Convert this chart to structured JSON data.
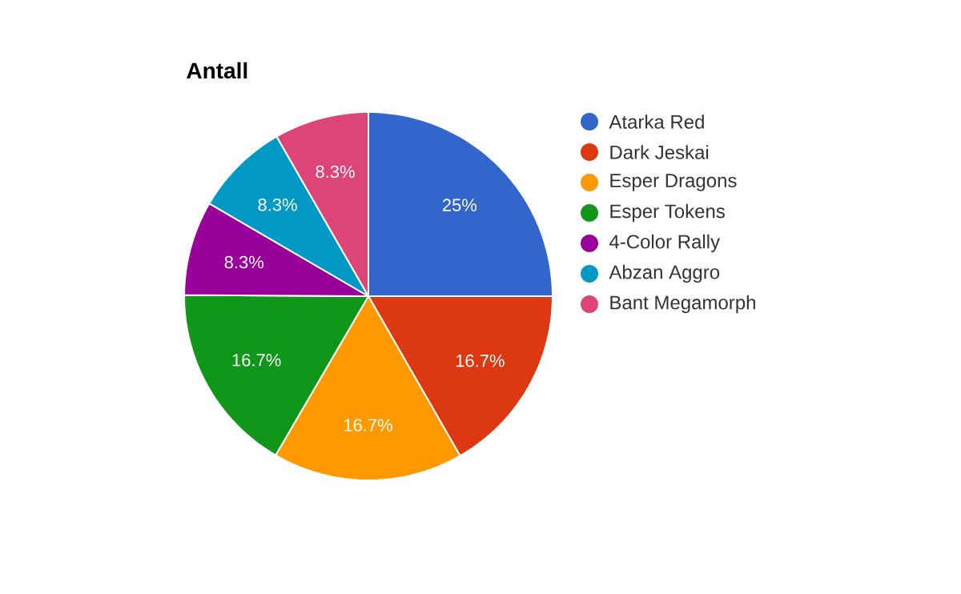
{
  "chart_data": {
    "type": "pie",
    "title": "Antall",
    "categories": [
      "Atarka Red",
      "Dark Jeskai",
      "Esper Dragons",
      "Esper Tokens",
      "4-Color Rally",
      "Abzan Aggro",
      "Bant Megamorph"
    ],
    "values": [
      25,
      16.7,
      16.7,
      16.7,
      8.3,
      8.3,
      8.3
    ],
    "value_labels": [
      "25%",
      "16.7%",
      "16.7%",
      "16.7%",
      "8.3%",
      "8.3%",
      "8.3%"
    ],
    "colors": [
      "#3366cc",
      "#dc3912",
      "#ff9900",
      "#109618",
      "#990099",
      "#0099c6",
      "#dd4477"
    ],
    "legend": "right"
  }
}
